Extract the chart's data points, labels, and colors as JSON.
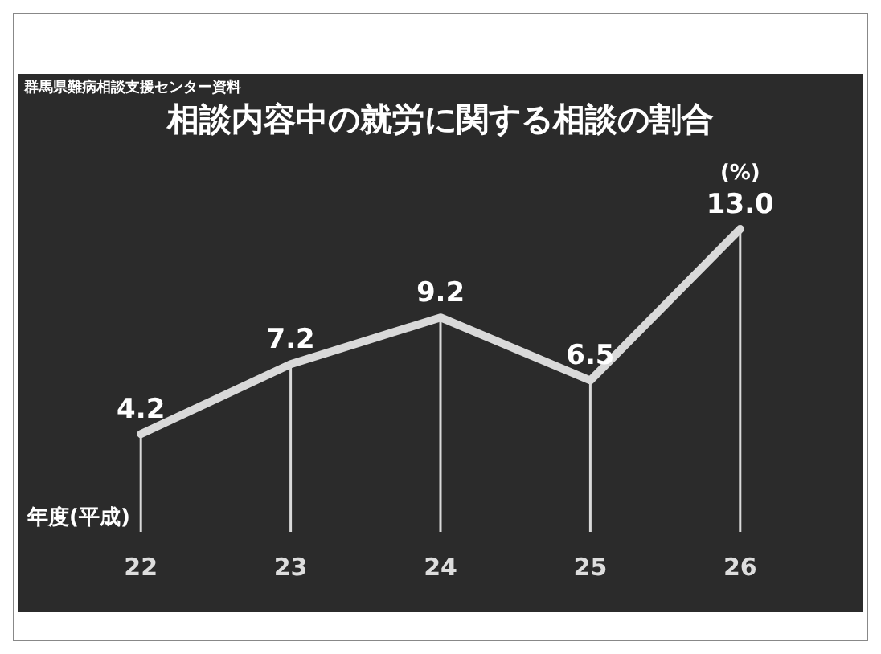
{
  "chart_data": {
    "type": "line",
    "title": "相談内容中の就労に関する相談の割合",
    "annotations": [
      "群馬県難病相談支援センター資料"
    ],
    "xlabel": "年度(平成)",
    "ylabel": "(%)",
    "categories": [
      "22",
      "23",
      "24",
      "25",
      "26"
    ],
    "series": [
      {
        "color": "#d9d9d9",
        "values": [
          4.2,
          7.2,
          9.2,
          6.5,
          13.0
        ],
        "value_labels": [
          "4.2",
          "7.2",
          "9.2",
          "6.5",
          "13.0"
        ]
      }
    ],
    "grid": "x",
    "legend": false,
    "marker": "none",
    "line_style": "solid"
  }
}
